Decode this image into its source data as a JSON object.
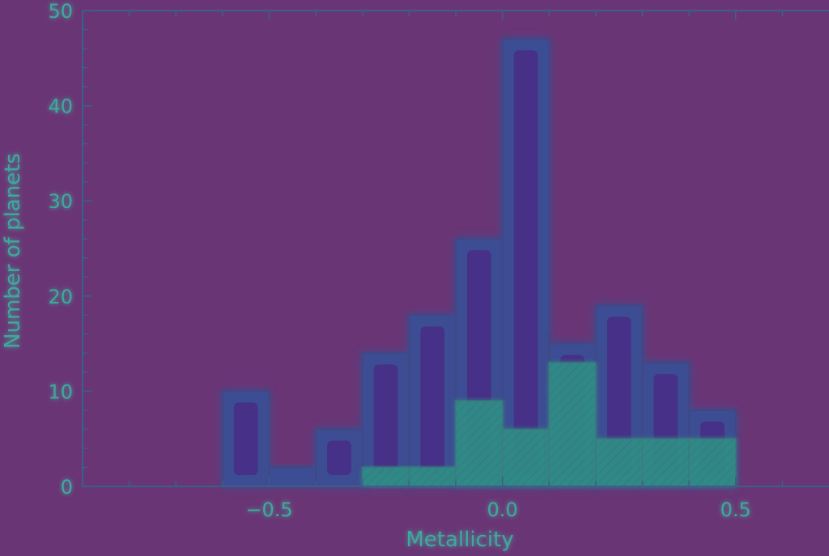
{
  "chart_data": {
    "type": "bar",
    "xlabel": "Metallicity",
    "ylabel": "Number of planets",
    "xlim": [
      -0.9,
      0.7
    ],
    "ylim": [
      0,
      50
    ],
    "x_ticks": [
      -0.5,
      0.0,
      0.5
    ],
    "x_tick_labels": [
      "−0.5",
      "0.0",
      "0.5"
    ],
    "y_ticks": [
      0,
      10,
      20,
      30,
      40,
      50
    ],
    "y_tick_labels": [
      "0",
      "10",
      "20",
      "30",
      "40",
      "50"
    ],
    "bin_edges": [
      -0.6,
      -0.5,
      -0.4,
      -0.3,
      -0.2,
      -0.1,
      0.0,
      0.1,
      0.2,
      0.3,
      0.4,
      0.5
    ],
    "series": [
      {
        "values": [
          10,
          2,
          6,
          14,
          18,
          26,
          47,
          15,
          19,
          13,
          8
        ]
      },
      {
        "values": [
          0,
          0,
          0,
          2,
          2,
          9,
          6,
          13,
          5,
          5,
          5
        ]
      }
    ],
    "grid": false,
    "legend": "none",
    "colors": {
      "background": "#6a3575",
      "bar_outline": "#3d4a86",
      "bar_fill_outer": "#3c4d93",
      "bar_fill_inner": "#4a2383",
      "bar_fill_subset": "#2f8f86",
      "subset_outline": "#3a7c80",
      "axis": "#3a5f8a",
      "text": "#3fa89a",
      "glow": "#5fd3c0"
    }
  }
}
